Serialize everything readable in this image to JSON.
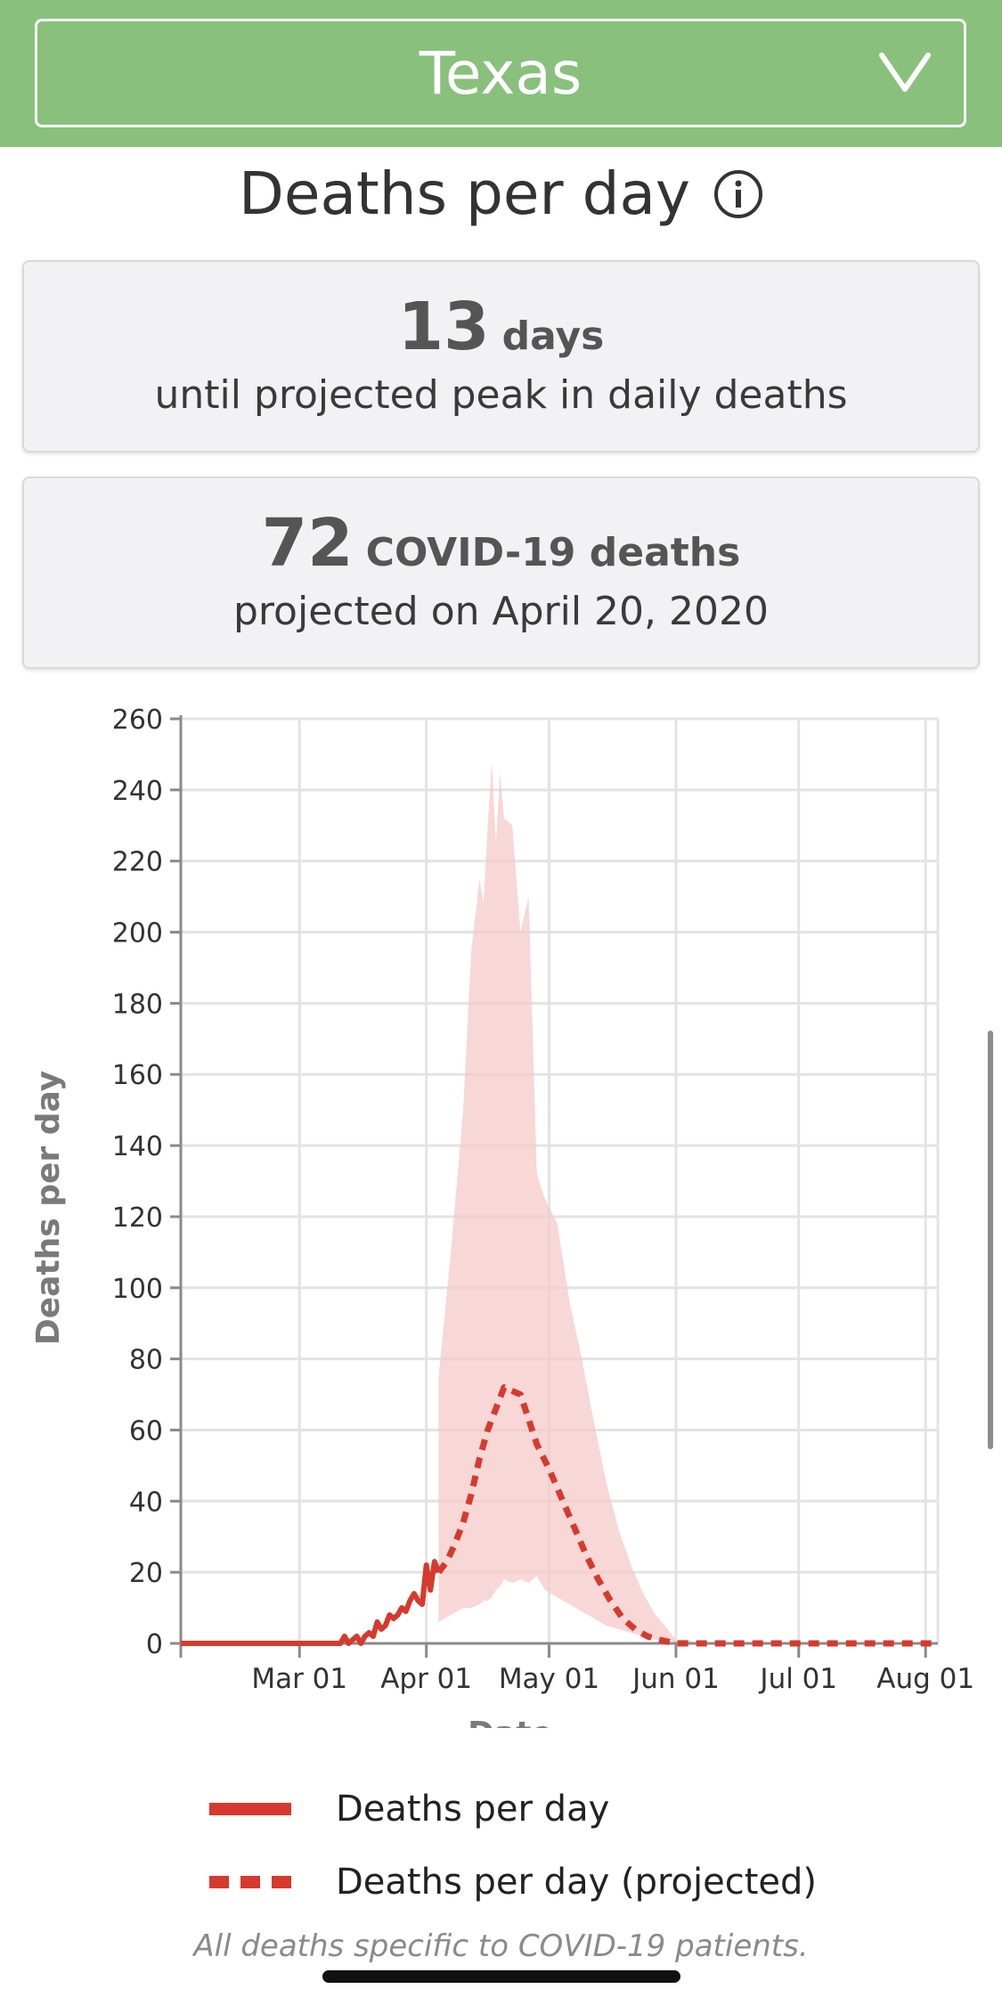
{
  "header": {
    "state_label": "Texas",
    "state_dropdown_icon": "chevron-down-icon",
    "colors": {
      "background": "#88c07c",
      "text": "#ffffff"
    }
  },
  "page_title": "Deaths per day",
  "info_icon": "info-icon",
  "stats": [
    {
      "value": "13",
      "unit": "days",
      "description": "until projected peak in daily deaths"
    },
    {
      "value": "72",
      "unit": "COVID-19 deaths",
      "description": "projected on April 20, 2020"
    }
  ],
  "legend": [
    {
      "label": "Deaths per day",
      "style": "solid",
      "color": "#d63a2e"
    },
    {
      "label": "Deaths per day (projected)",
      "style": "dashed",
      "color": "#d63a2e"
    }
  ],
  "footnote": "All deaths specific to COVID-19 patients.",
  "chart_data": {
    "type": "line",
    "xlabel": "Date",
    "ylabel": "Deaths per day",
    "x_range": [
      "2020-02-01",
      "2020-08-04"
    ],
    "ylim": [
      0,
      260
    ],
    "y_ticks": [
      0,
      20,
      40,
      60,
      80,
      100,
      120,
      140,
      160,
      180,
      200,
      220,
      240,
      260
    ],
    "x_ticks": [
      {
        "date": "2020-03-01",
        "label": "Mar 01"
      },
      {
        "date": "2020-04-01",
        "label": "Apr 01"
      },
      {
        "date": "2020-05-01",
        "label": "May 01"
      },
      {
        "date": "2020-06-01",
        "label": "Jun 01"
      },
      {
        "date": "2020-07-01",
        "label": "Jul 01"
      },
      {
        "date": "2020-08-01",
        "label": "Aug 01"
      }
    ],
    "grid": true,
    "colors": {
      "line": "#d63a2e",
      "band": "#f5c9c9"
    },
    "series": [
      {
        "name": "Deaths per day",
        "style": "solid",
        "x": [
          "2020-02-01",
          "2020-03-01",
          "2020-03-11",
          "2020-03-12",
          "2020-03-13",
          "2020-03-14",
          "2020-03-15",
          "2020-03-16",
          "2020-03-17",
          "2020-03-18",
          "2020-03-19",
          "2020-03-20",
          "2020-03-21",
          "2020-03-22",
          "2020-03-23",
          "2020-03-24",
          "2020-03-25",
          "2020-03-26",
          "2020-03-27",
          "2020-03-28",
          "2020-03-29",
          "2020-03-30",
          "2020-03-31",
          "2020-04-01",
          "2020-04-02",
          "2020-04-03",
          "2020-04-04"
        ],
        "values": [
          0,
          0,
          0,
          2,
          0,
          1,
          2,
          0,
          2,
          3,
          2,
          6,
          4,
          5,
          8,
          7,
          8,
          10,
          9,
          12,
          14,
          12,
          11,
          22,
          15,
          23,
          20
        ]
      },
      {
        "name": "Deaths per day (projected)",
        "style": "dashed",
        "x": [
          "2020-04-04",
          "2020-04-06",
          "2020-04-08",
          "2020-04-10",
          "2020-04-12",
          "2020-04-14",
          "2020-04-16",
          "2020-04-18",
          "2020-04-20",
          "2020-04-22",
          "2020-04-24",
          "2020-04-26",
          "2020-04-28",
          "2020-05-01",
          "2020-05-04",
          "2020-05-07",
          "2020-05-10",
          "2020-05-13",
          "2020-05-16",
          "2020-05-19",
          "2020-05-22",
          "2020-05-25",
          "2020-05-28",
          "2020-06-01",
          "2020-06-15",
          "2020-07-01",
          "2020-07-15",
          "2020-08-04"
        ],
        "values": [
          20,
          23,
          28,
          34,
          42,
          52,
          60,
          66,
          72,
          71,
          70,
          63,
          56,
          49,
          41,
          33,
          25,
          18,
          12,
          7,
          4,
          2,
          1,
          0,
          0,
          0,
          0,
          0
        ]
      }
    ],
    "uncertainty_band": {
      "x": [
        "2020-04-04",
        "2020-04-07",
        "2020-04-10",
        "2020-04-12",
        "2020-04-14",
        "2020-04-15",
        "2020-04-16",
        "2020-04-17",
        "2020-04-18",
        "2020-04-19",
        "2020-04-20",
        "2020-04-22",
        "2020-04-24",
        "2020-04-26",
        "2020-04-28",
        "2020-04-30",
        "2020-05-03",
        "2020-05-06",
        "2020-05-09",
        "2020-05-12",
        "2020-05-15",
        "2020-05-18",
        "2020-05-21",
        "2020-05-24",
        "2020-05-27",
        "2020-05-30",
        "2020-06-01",
        "2020-06-04",
        "2020-06-06"
      ],
      "lower": [
        6,
        8,
        10,
        10,
        11,
        12,
        12,
        13,
        15,
        16,
        18,
        17,
        18,
        17,
        19,
        15,
        13,
        11,
        9,
        7,
        5,
        4,
        3,
        2,
        1,
        1,
        0,
        0,
        0
      ],
      "upper": [
        75,
        110,
        150,
        195,
        215,
        208,
        230,
        248,
        225,
        245,
        232,
        230,
        200,
        210,
        132,
        125,
        118,
        96,
        80,
        62,
        45,
        32,
        22,
        14,
        8,
        4,
        1,
        1,
        0
      ]
    }
  }
}
